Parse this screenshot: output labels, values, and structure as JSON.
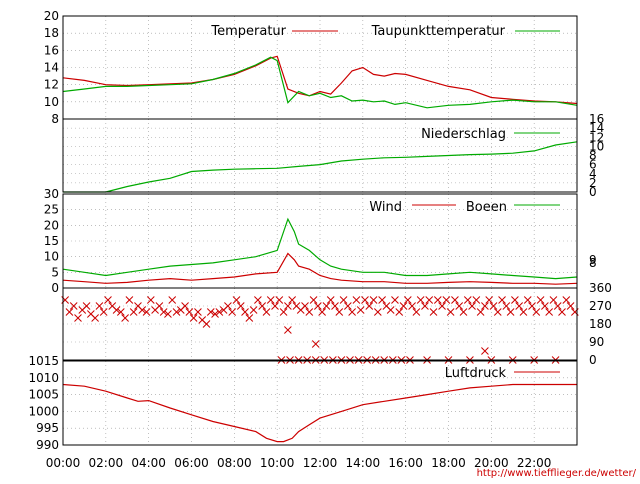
{
  "chart_data": [
    {
      "type": "line",
      "ylim": [
        8,
        20
      ],
      "y_ticks": [
        "8",
        "10",
        "12",
        "14",
        "16",
        "18",
        "20"
      ],
      "grid": true,
      "legend_position": "top-right",
      "colors": {
        "Temperatur": "#cc0000",
        "Taupunkttemperatur": "#00aa00"
      },
      "series": [
        {
          "name": "Temperatur",
          "x": [
            0,
            1,
            2,
            3,
            4,
            5,
            6,
            7,
            8,
            9,
            9.7,
            10,
            10.5,
            11,
            11.5,
            12,
            12.5,
            13,
            13.5,
            14,
            14.5,
            15,
            15.5,
            16,
            17,
            18,
            19,
            20,
            21,
            22,
            23,
            24
          ],
          "values": [
            12.8,
            12.5,
            12.0,
            11.9,
            12.0,
            12.1,
            12.2,
            12.6,
            13.2,
            14.2,
            15.1,
            15.3,
            11.5,
            11.0,
            10.7,
            11.2,
            10.9,
            12.2,
            13.6,
            14.0,
            13.2,
            13.0,
            13.3,
            13.2,
            12.5,
            11.8,
            11.4,
            10.5,
            10.3,
            10.1,
            10.0,
            9.8
          ]
        },
        {
          "name": "Taupunkttemperatur",
          "x": [
            0,
            1,
            2,
            3,
            4,
            5,
            6,
            7,
            8,
            9,
            9.7,
            10,
            10.5,
            11,
            11.5,
            12,
            12.5,
            13,
            13.5,
            14,
            14.5,
            15,
            15.5,
            16,
            17,
            18,
            19,
            20,
            21,
            22,
            23,
            24
          ],
          "values": [
            11.2,
            11.5,
            11.8,
            11.8,
            11.9,
            12.0,
            12.1,
            12.6,
            13.3,
            14.3,
            15.2,
            14.8,
            9.9,
            11.2,
            10.7,
            11.0,
            10.5,
            10.7,
            10.1,
            10.2,
            10.0,
            10.1,
            9.7,
            9.9,
            9.3,
            9.6,
            9.7,
            10.0,
            10.2,
            10.0,
            10.0,
            9.6
          ]
        }
      ]
    },
    {
      "type": "line",
      "ylim": [
        0,
        16
      ],
      "y_ticks_right": [
        "0",
        "2",
        "4",
        "6",
        "8",
        "10",
        "12",
        "14",
        "16"
      ],
      "grid": true,
      "legend_position": "top-right",
      "colors": {
        "Niederschlag": "#00aa00"
      },
      "series": [
        {
          "name": "Niederschlag",
          "x": [
            0,
            1,
            2,
            3,
            4,
            5,
            6,
            7,
            8,
            9,
            10,
            11,
            12,
            13,
            14,
            15,
            16,
            17,
            18,
            19,
            20,
            21,
            22,
            23,
            24
          ],
          "values": [
            0,
            0,
            0,
            1.2,
            2.2,
            3.0,
            4.5,
            4.8,
            5.0,
            5.1,
            5.2,
            5.6,
            6.0,
            6.8,
            7.2,
            7.5,
            7.6,
            7.8,
            8.0,
            8.2,
            8.3,
            8.5,
            9.0,
            10.3,
            11.0
          ]
        }
      ]
    },
    {
      "type": "line",
      "ylim": [
        0,
        30
      ],
      "y_ticks": [
        "0",
        "5",
        "10",
        "15",
        "20",
        "25",
        "30"
      ],
      "y_ticks_right": [
        "8",
        "9"
      ],
      "grid": true,
      "legend_position": "top-right",
      "colors": {
        "Wind": "#cc0000",
        "Boeen": "#00aa00"
      },
      "series": [
        {
          "name": "Wind",
          "x": [
            0,
            1,
            2,
            3,
            4,
            5,
            6,
            7,
            8,
            9,
            10,
            10.5,
            10.8,
            11,
            11.5,
            12,
            12.5,
            13,
            14,
            15,
            16,
            17,
            18,
            19,
            20,
            21,
            22,
            23,
            24
          ],
          "values": [
            2.5,
            2.0,
            1.5,
            1.8,
            2.5,
            3.0,
            2.5,
            3.0,
            3.5,
            4.5,
            5.0,
            11.0,
            9.0,
            7.0,
            6.0,
            4.0,
            3.0,
            2.5,
            2.0,
            2.0,
            1.5,
            1.5,
            1.8,
            2.0,
            1.8,
            1.5,
            1.5,
            1.2,
            1.5
          ]
        },
        {
          "name": "Boeen",
          "x": [
            0,
            1,
            2,
            3,
            4,
            5,
            6,
            7,
            8,
            9,
            10,
            10.5,
            10.8,
            11,
            11.5,
            12,
            12.5,
            13,
            14,
            15,
            16,
            17,
            18,
            19,
            20,
            21,
            22,
            23,
            24
          ],
          "values": [
            6.0,
            5.0,
            4.0,
            5.0,
            6.0,
            7.0,
            7.5,
            8.0,
            9.0,
            10.0,
            12.0,
            22.0,
            18.0,
            14.0,
            12.0,
            9.0,
            7.0,
            6.0,
            5.0,
            5.0,
            4.0,
            4.0,
            4.5,
            5.0,
            4.5,
            4.0,
            3.5,
            3.0,
            3.5
          ]
        }
      ]
    },
    {
      "type": "scatter",
      "ylim": [
        0,
        360
      ],
      "y_ticks_right": [
        "0",
        "90",
        "180",
        "270",
        "360"
      ],
      "grid": true,
      "colors": {
        "Windrichtung": "#cc0000"
      },
      "series": [
        {
          "marker": "x",
          "x": [
            0.1,
            0.3,
            0.5,
            0.7,
            0.9,
            1.1,
            1.3,
            1.5,
            1.7,
            1.9,
            2.1,
            2.3,
            2.5,
            2.7,
            2.9,
            3.1,
            3.3,
            3.5,
            3.7,
            3.9,
            4.1,
            4.3,
            4.5,
            4.7,
            4.9,
            5.1,
            5.3,
            5.5,
            5.7,
            5.9,
            6.1,
            6.3,
            6.5,
            6.7,
            6.9,
            7.1,
            7.3,
            7.5,
            7.7,
            7.9,
            8.1,
            8.3,
            8.5,
            8.7,
            8.9,
            9.1,
            9.3,
            9.5,
            9.7,
            9.9,
            10.1,
            10.3,
            10.5,
            10.7,
            10.9,
            11.1,
            11.3,
            11.5,
            11.7,
            11.9,
            12.1,
            12.3,
            12.5,
            12.7,
            12.9,
            13.1,
            13.3,
            13.5,
            13.7,
            13.9,
            14.1,
            14.3,
            14.5,
            14.7,
            14.9,
            15.1,
            15.3,
            15.5,
            15.7,
            15.9,
            16.1,
            16.3,
            16.5,
            16.7,
            16.9,
            17.1,
            17.3,
            17.5,
            17.7,
            17.9,
            18.1,
            18.3,
            18.5,
            18.7,
            18.9,
            19.1,
            19.3,
            19.5,
            19.7,
            19.9,
            20.1,
            20.3,
            20.5,
            20.7,
            20.9,
            21.1,
            21.3,
            21.5,
            21.7,
            21.9,
            22.1,
            22.3,
            22.5,
            22.7,
            22.9,
            23.1,
            23.3,
            23.5,
            23.7,
            23.9,
            10.2,
            10.6,
            11.0,
            11.4,
            11.8,
            12.2,
            12.6,
            13.0,
            13.4,
            13.8,
            14.2,
            14.6,
            15.0,
            15.4,
            15.8,
            16.2,
            17.0,
            18.0,
            19.0,
            20.0,
            21.0,
            22.0,
            23.0,
            10.5,
            11.8,
            19.7
          ],
          "values": [
            300,
            240,
            270,
            210,
            250,
            270,
            230,
            210,
            270,
            240,
            300,
            270,
            250,
            240,
            210,
            300,
            240,
            270,
            250,
            240,
            300,
            250,
            270,
            240,
            230,
            300,
            240,
            250,
            270,
            240,
            210,
            240,
            200,
            180,
            240,
            230,
            240,
            250,
            270,
            240,
            300,
            270,
            240,
            210,
            250,
            300,
            270,
            240,
            300,
            270,
            300,
            240,
            270,
            300,
            270,
            250,
            270,
            240,
            300,
            270,
            240,
            270,
            300,
            270,
            240,
            300,
            270,
            240,
            300,
            250,
            300,
            270,
            300,
            240,
            300,
            270,
            250,
            300,
            240,
            270,
            300,
            270,
            240,
            300,
            270,
            300,
            240,
            300,
            270,
            300,
            240,
            300,
            270,
            240,
            300,
            270,
            300,
            240,
            270,
            300,
            270,
            240,
            300,
            270,
            240,
            300,
            270,
            240,
            300,
            270,
            240,
            300,
            270,
            240,
            300,
            270,
            240,
            300,
            270,
            240,
            0,
            0,
            0,
            0,
            0,
            0,
            0,
            0,
            0,
            0,
            0,
            0,
            0,
            0,
            0,
            0,
            0,
            0,
            0,
            0,
            0,
            0,
            0,
            150,
            80,
            45
          ]
        }
      ]
    },
    {
      "type": "line",
      "ylim": [
        990,
        1015
      ],
      "y_ticks": [
        "990",
        "995",
        "1000",
        "1005",
        "1010",
        "1015"
      ],
      "grid": true,
      "legend_position": "top-right",
      "colors": {
        "Luftdruck": "#cc0000"
      },
      "series": [
        {
          "name": "Luftdruck",
          "x": [
            0,
            1,
            2,
            3,
            3.5,
            4,
            5,
            6,
            7,
            8,
            9,
            9.5,
            10,
            10.3,
            10.7,
            11,
            11.5,
            12,
            13,
            14,
            15,
            16,
            17,
            18,
            19,
            20,
            21,
            22,
            23,
            24
          ],
          "values": [
            1008,
            1007.5,
            1006,
            1004,
            1003,
            1003.2,
            1001,
            999,
            997,
            995.5,
            994,
            992,
            991,
            991,
            992,
            994,
            996,
            998,
            1000,
            1002,
            1003,
            1004,
            1005,
            1006,
            1007,
            1007.5,
            1008,
            1008,
            1008,
            1008
          ]
        }
      ]
    }
  ],
  "x_axis": {
    "xlim": [
      0,
      24
    ],
    "ticks": [
      "00:00",
      "02:00",
      "04:00",
      "06:00",
      "08:00",
      "10:00",
      "12:00",
      "14:00",
      "16:00",
      "18:00",
      "20:00",
      "22:00"
    ]
  },
  "footer_url": "http://www.tiefflieger.de/wetter/"
}
